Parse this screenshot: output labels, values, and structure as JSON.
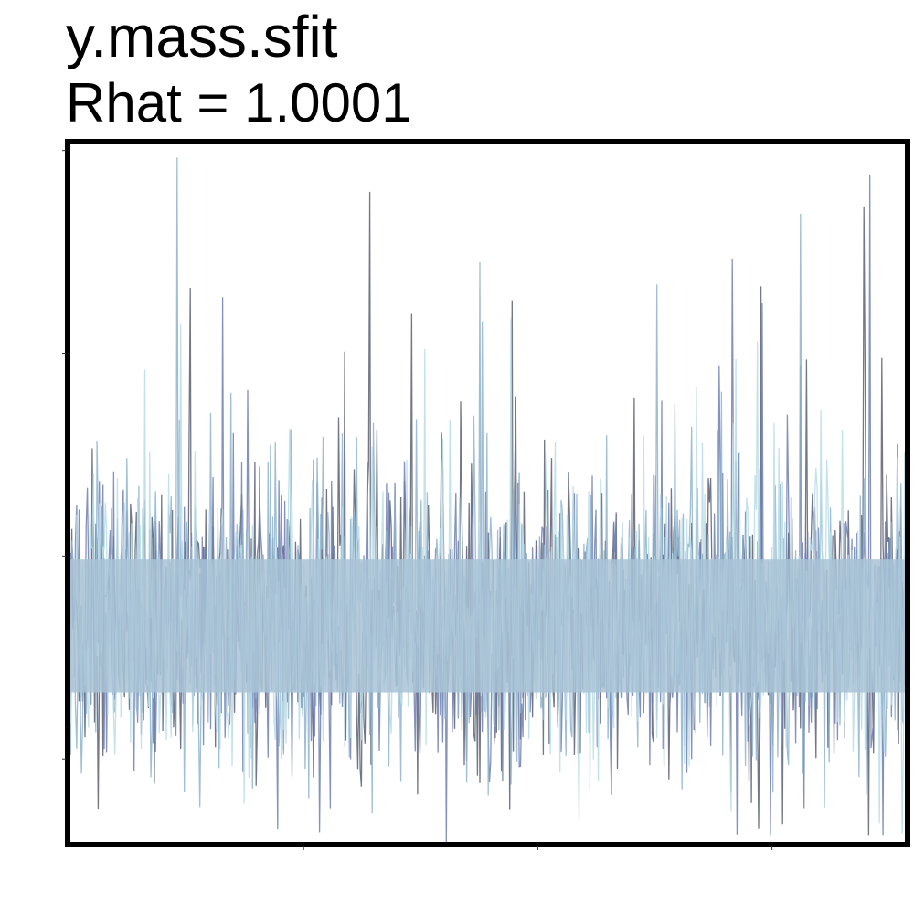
{
  "chart_data": {
    "type": "line",
    "title": "y.mass.sfit",
    "subtitle": "Rhat = 1.0001",
    "xlabel": "",
    "ylabel": "",
    "x_tick_labels": [],
    "y_tick_labels": [],
    "grid": false,
    "legend": "none",
    "series_count": 4,
    "iterations": 700,
    "ylim": [
      0,
      1
    ],
    "series_colors": [
      "#5a5f72",
      "#6e7fb0",
      "#8fb3cc",
      "#b9dce6"
    ],
    "band_color": "#a9c3d6",
    "typical_range": [
      0.12,
      0.5
    ],
    "spike_highs": [
      0.91,
      0.78,
      0.83,
      0.75
    ],
    "spike_lows": [
      0.02,
      0.0,
      0.05
    ]
  }
}
